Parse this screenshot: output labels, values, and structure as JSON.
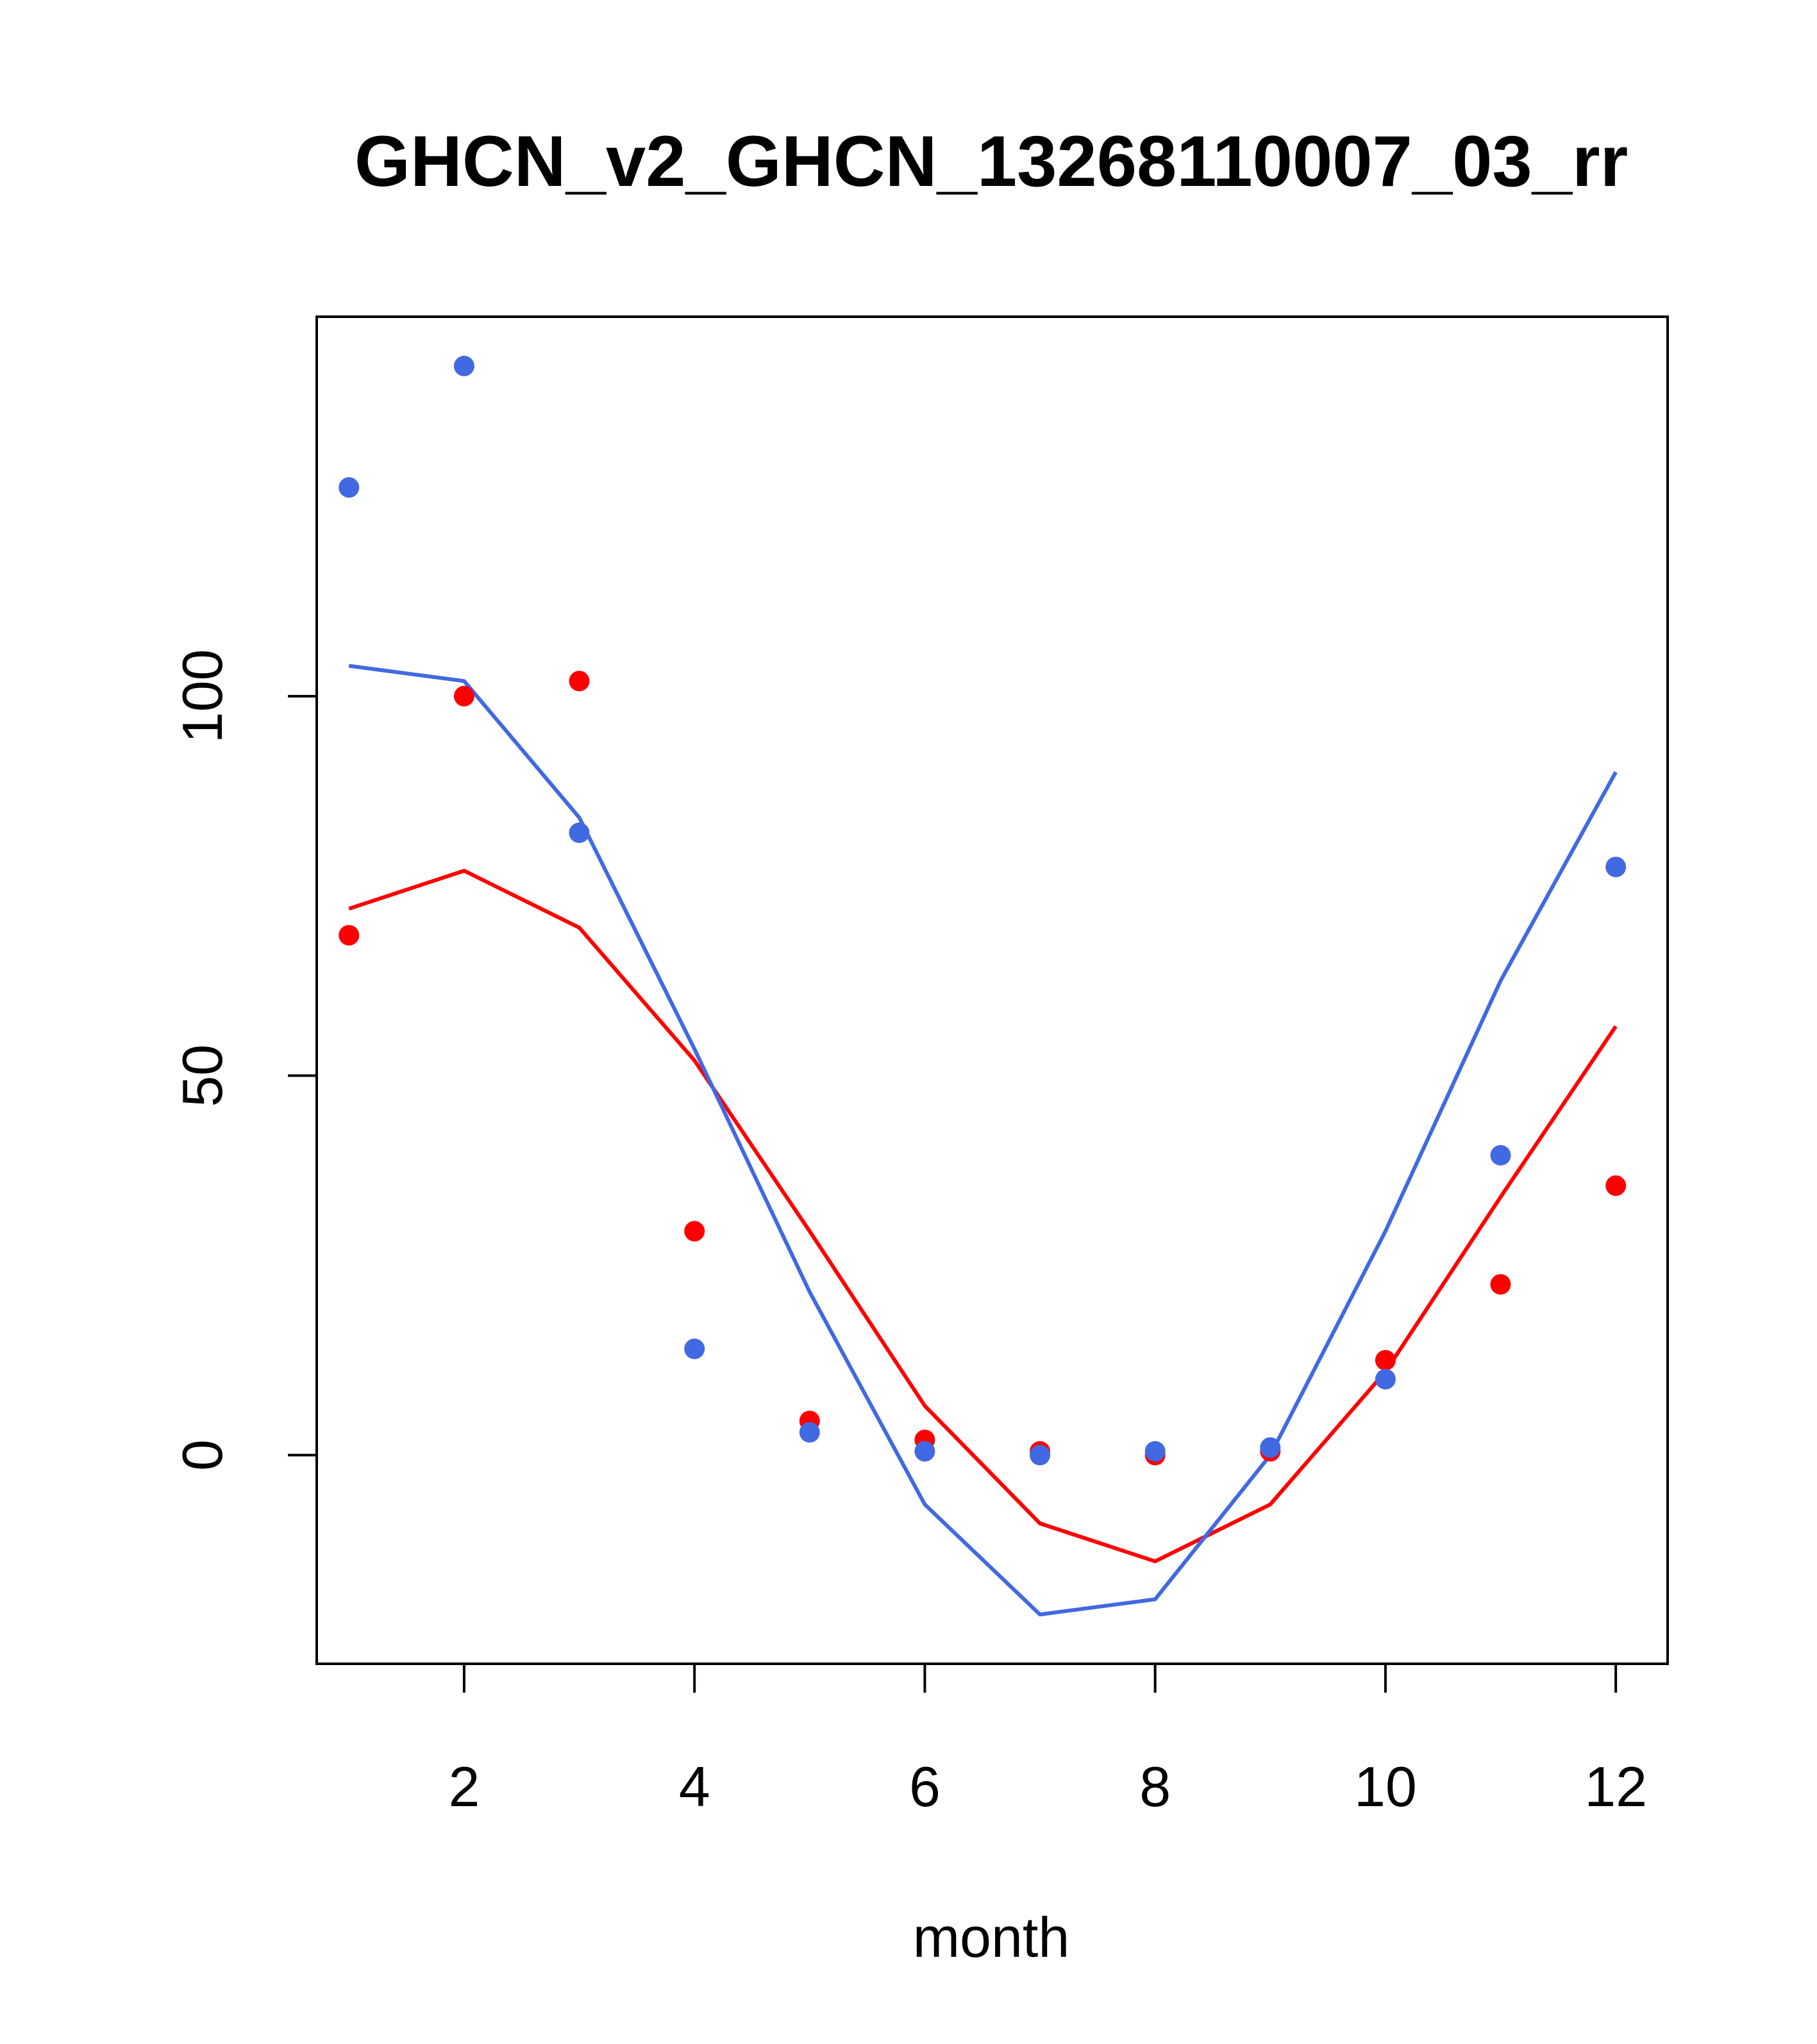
{
  "chart_data": {
    "type": "line",
    "title": "GHCN_v2_GHCN_13268110007_03_rr",
    "xlabel": "month",
    "ylabel": "",
    "xlim": [
      0.72,
      12.45
    ],
    "ylim": [
      -27.5,
      150.0
    ],
    "x_ticks": [
      2,
      4,
      6,
      8,
      10,
      12
    ],
    "x_tick_labels": [
      "2",
      "4",
      "6",
      "8",
      "10",
      "12"
    ],
    "y_ticks": [
      0,
      50,
      100
    ],
    "y_tick_labels": [
      "0",
      "50",
      "100"
    ],
    "grid": false,
    "legend": "none",
    "x": [
      1,
      2,
      3,
      4,
      5,
      6,
      7,
      8,
      9,
      10,
      11,
      12
    ],
    "series": [
      {
        "kind": "line",
        "color": "#ff0000",
        "values": [
          72.0,
          77.0,
          69.5,
          52.0,
          29.5,
          6.5,
          -9.0,
          -14.0,
          -6.5,
          11.0,
          34.0,
          56.5
        ]
      },
      {
        "kind": "line",
        "color": "#4169e1",
        "values": [
          104.0,
          102.0,
          84.0,
          53.5,
          21.5,
          -6.5,
          -21.0,
          -19.0,
          0.0,
          29.5,
          62.5,
          90.0
        ]
      },
      {
        "kind": "points",
        "color": "#ff0000",
        "values": [
          68.5,
          100.0,
          102.0,
          29.5,
          4.5,
          2.0,
          0.5,
          0.0,
          0.5,
          12.5,
          22.5,
          35.5
        ]
      },
      {
        "kind": "points",
        "color": "#4169e1",
        "values": [
          127.5,
          143.5,
          82.0,
          14.0,
          3.0,
          0.5,
          0.0,
          0.5,
          1.0,
          10.0,
          39.5,
          77.5
        ]
      }
    ]
  }
}
